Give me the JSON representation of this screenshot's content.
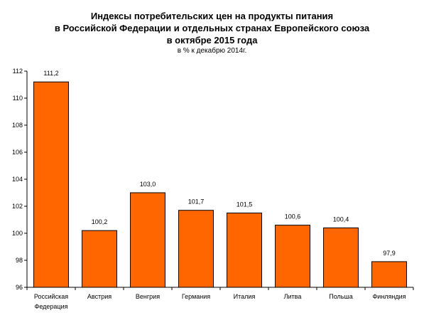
{
  "chart_data": {
    "type": "bar",
    "title_lines": [
      "Индексы потребительских цен на продукты питания",
      "в Российской Федерации и отдельных странах Европейского союза",
      "в октябре 2015 года"
    ],
    "subtitle": "в % к декабрю 2014г.",
    "categories": [
      [
        "Российская",
        "Федерация"
      ],
      [
        "Австрия"
      ],
      [
        "Венгрия"
      ],
      [
        "Германия"
      ],
      [
        "Италия"
      ],
      [
        "Литва"
      ],
      [
        "Польша"
      ],
      [
        "Финляндия"
      ]
    ],
    "values": [
      111.2,
      100.2,
      103.0,
      101.7,
      101.5,
      100.6,
      100.4,
      97.9
    ],
    "value_labels": [
      "111,2",
      "100,2",
      "103,0",
      "101,7",
      "101,5",
      "100,6",
      "100,4",
      "97,9"
    ],
    "ylim": [
      96,
      112
    ],
    "yticks": [
      96,
      98,
      100,
      102,
      104,
      106,
      108,
      110,
      112
    ],
    "xlabel": "",
    "ylabel": "",
    "grid": false,
    "legend": "none",
    "bar_color": "#FF6600",
    "bar_edge_color": "#000000"
  }
}
